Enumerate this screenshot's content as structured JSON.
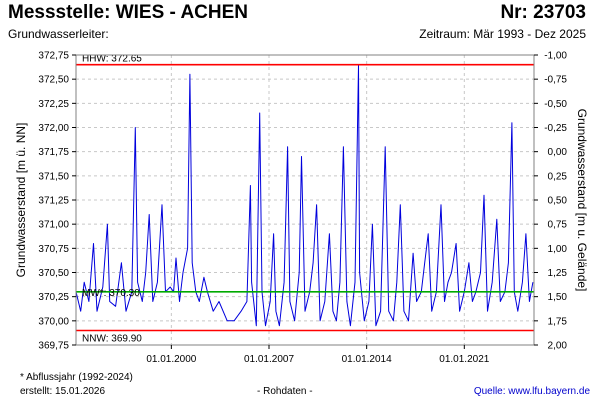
{
  "header": {
    "title": "Messstelle: WIES - ACHEN",
    "number": "Nr: 23703",
    "aquifer_label": "Grundwasserleiter:",
    "period": "Zeitraum: Mär 1993 - Dez 2025"
  },
  "footer": {
    "note": "* Abflussjahr (1992-2024)",
    "created": "erstellt:  15.01.2026",
    "raw_data": "- Rohdaten -",
    "source": "Quelle: www.lfu.bayern.de"
  },
  "colors": {
    "series": "#0000dd",
    "hhw": "#ff0000",
    "nnw": "#ff0000",
    "mw": "#00aa00",
    "grid": "#c8c8c8"
  },
  "chart_data": {
    "type": "line",
    "title": "",
    "ylabel_left": "Grundwasserstand [m ü. NN]",
    "ylabel_right": "Grundwasserstand [m u. Gelände]",
    "ylim": [
      369.75,
      372.75
    ],
    "xlim": [
      "1993-03-01",
      "2025-12-31"
    ],
    "y_ticks_left": [
      "372,75",
      "372,50",
      "372,25",
      "372,00",
      "371,75",
      "371,50",
      "371,25",
      "371,00",
      "370,75",
      "370,50",
      "370,25",
      "370,00",
      "369,75"
    ],
    "y_ticks_right": [
      "-1,00",
      "-0,75",
      "-0,50",
      "-0,25",
      "0,00",
      "0,25",
      "0,50",
      "0,75",
      "1,00",
      "1,25",
      "1,50",
      "1,75",
      "2,00"
    ],
    "x_ticks": [
      {
        "label": "01.01.2000",
        "date": "2000-01-01"
      },
      {
        "label": "01.01.2007",
        "date": "2007-01-01"
      },
      {
        "label": "01.01.2014",
        "date": "2014-01-01"
      },
      {
        "label": "01.01.2021",
        "date": "2021-01-01"
      }
    ],
    "reference_lines": [
      {
        "name": "HHW",
        "label": "HHW: 372.65",
        "value": 372.65
      },
      {
        "name": "MW",
        "label": "MW*: 370.30",
        "value": 370.3
      },
      {
        "name": "NNW",
        "label": "NNW: 369.90",
        "value": 369.9
      }
    ],
    "grid": true,
    "series": [
      {
        "points": [
          [
            "1993-03-01",
            370.3
          ],
          [
            "1993-07-01",
            370.1
          ],
          [
            "1993-10-01",
            370.4
          ],
          [
            "1994-02-01",
            370.2
          ],
          [
            "1994-06-01",
            370.8
          ],
          [
            "1994-09-01",
            370.1
          ],
          [
            "1995-02-01",
            370.35
          ],
          [
            "1995-06-01",
            371.0
          ],
          [
            "1995-08-01",
            370.2
          ],
          [
            "1996-01-01",
            370.15
          ],
          [
            "1996-06-01",
            370.6
          ],
          [
            "1996-10-01",
            370.1
          ],
          [
            "1997-03-01",
            370.3
          ],
          [
            "1997-06-01",
            372.0
          ],
          [
            "1997-08-01",
            370.4
          ],
          [
            "1997-12-01",
            370.2
          ],
          [
            "1998-03-01",
            370.5
          ],
          [
            "1998-06-01",
            371.1
          ],
          [
            "1998-09-01",
            370.2
          ],
          [
            "1999-01-01",
            370.4
          ],
          [
            "1999-05-01",
            371.2
          ],
          [
            "1999-08-01",
            370.3
          ],
          [
            "1999-12-01",
            370.35
          ],
          [
            "2000-03-01",
            370.3
          ],
          [
            "2000-05-01",
            370.65
          ],
          [
            "2000-08-01",
            370.2
          ],
          [
            "2000-11-01",
            370.5
          ],
          [
            "2001-03-01",
            370.75
          ],
          [
            "2001-05-01",
            372.55
          ],
          [
            "2001-07-01",
            370.6
          ],
          [
            "2001-10-01",
            370.3
          ],
          [
            "2002-01-01",
            370.2
          ],
          [
            "2002-05-01",
            370.45
          ],
          [
            "2002-08-01",
            370.3
          ],
          [
            "2003-01-01",
            370.1
          ],
          [
            "2003-06-01",
            370.2
          ],
          [
            "2004-01-01",
            370.0
          ],
          [
            "2004-07-01",
            370.0
          ],
          [
            "2005-01-01",
            370.1
          ],
          [
            "2005-06-01",
            370.2
          ],
          [
            "2005-09-01",
            371.4
          ],
          [
            "2005-10-01",
            370.4
          ],
          [
            "2006-02-01",
            369.95
          ],
          [
            "2006-05-01",
            372.15
          ],
          [
            "2006-07-01",
            370.3
          ],
          [
            "2006-10-01",
            369.95
          ],
          [
            "2007-02-01",
            370.2
          ],
          [
            "2007-05-01",
            370.9
          ],
          [
            "2007-07-01",
            370.1
          ],
          [
            "2007-10-01",
            369.95
          ],
          [
            "2008-02-01",
            370.4
          ],
          [
            "2008-05-01",
            371.8
          ],
          [
            "2008-07-01",
            370.2
          ],
          [
            "2008-11-01",
            370.0
          ],
          [
            "2009-03-01",
            370.5
          ],
          [
            "2009-05-01",
            371.7
          ],
          [
            "2009-08-01",
            370.1
          ],
          [
            "2009-12-01",
            370.3
          ],
          [
            "2010-03-01",
            370.6
          ],
          [
            "2010-06-01",
            371.2
          ],
          [
            "2010-09-01",
            370.0
          ],
          [
            "2011-01-01",
            370.2
          ],
          [
            "2011-05-01",
            370.9
          ],
          [
            "2011-08-01",
            370.1
          ],
          [
            "2011-11-01",
            370.0
          ],
          [
            "2012-02-01",
            370.4
          ],
          [
            "2012-05-01",
            371.8
          ],
          [
            "2012-08-01",
            370.2
          ],
          [
            "2012-11-01",
            369.95
          ],
          [
            "2013-03-01",
            370.4
          ],
          [
            "2013-06-01",
            372.65
          ],
          [
            "2013-07-01",
            370.5
          ],
          [
            "2013-11-01",
            370.0
          ],
          [
            "2014-03-01",
            370.2
          ],
          [
            "2014-06-01",
            371.0
          ],
          [
            "2014-09-01",
            369.95
          ],
          [
            "2015-01-01",
            370.1
          ],
          [
            "2015-05-01",
            371.8
          ],
          [
            "2015-08-01",
            370.1
          ],
          [
            "2015-12-01",
            370.0
          ],
          [
            "2016-03-01",
            370.4
          ],
          [
            "2016-06-01",
            371.2
          ],
          [
            "2016-09-01",
            370.1
          ],
          [
            "2017-01-01",
            370.0
          ],
          [
            "2017-05-01",
            370.7
          ],
          [
            "2017-08-01",
            370.2
          ],
          [
            "2017-12-01",
            370.3
          ],
          [
            "2018-03-01",
            370.6
          ],
          [
            "2018-06-01",
            370.9
          ],
          [
            "2018-09-01",
            370.1
          ],
          [
            "2019-01-01",
            370.3
          ],
          [
            "2019-05-01",
            371.2
          ],
          [
            "2019-08-01",
            370.2
          ],
          [
            "2019-11-01",
            370.4
          ],
          [
            "2020-02-01",
            370.5
          ],
          [
            "2020-06-01",
            370.8
          ],
          [
            "2020-09-01",
            370.1
          ],
          [
            "2021-01-01",
            370.3
          ],
          [
            "2021-05-01",
            370.6
          ],
          [
            "2021-08-01",
            370.2
          ],
          [
            "2021-11-01",
            370.3
          ],
          [
            "2022-03-01",
            370.5
          ],
          [
            "2022-06-01",
            371.3
          ],
          [
            "2022-09-01",
            370.1
          ],
          [
            "2023-01-01",
            370.4
          ],
          [
            "2023-05-01",
            371.05
          ],
          [
            "2023-08-01",
            370.2
          ],
          [
            "2023-12-01",
            370.3
          ],
          [
            "2024-03-01",
            370.6
          ],
          [
            "2024-06-01",
            372.05
          ],
          [
            "2024-08-01",
            370.3
          ],
          [
            "2024-11-01",
            370.1
          ],
          [
            "2025-03-01",
            370.4
          ],
          [
            "2025-06-01",
            370.9
          ],
          [
            "2025-09-01",
            370.2
          ],
          [
            "2025-12-01",
            370.4
          ]
        ]
      }
    ]
  }
}
